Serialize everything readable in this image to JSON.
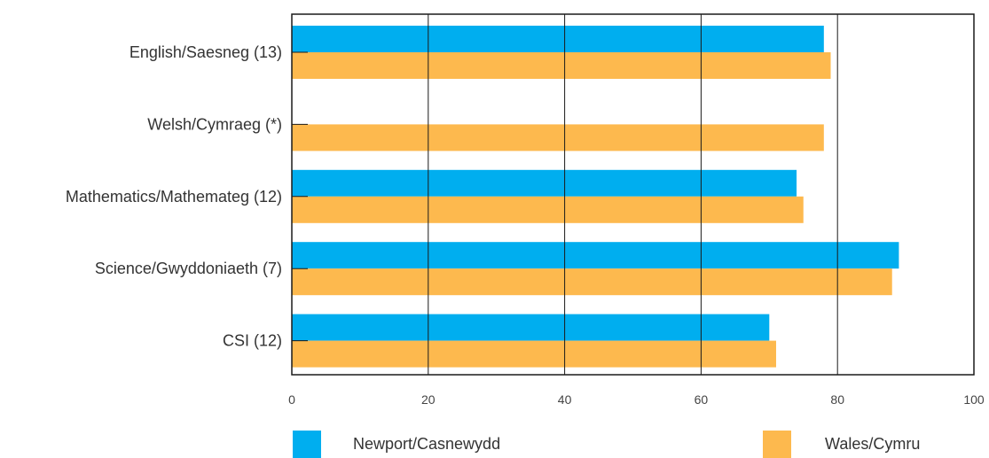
{
  "chart_data": {
    "type": "bar",
    "orientation": "horizontal",
    "categories": [
      "English/Saesneg (13)",
      "Welsh/Cymraeg (*)",
      "Mathematics/Mathemateg (12)",
      "Science/Gwyddoniaeth (7)",
      "CSI (12)"
    ],
    "series": [
      {
        "name": "Newport/Casnewydd",
        "color": "#00aeef",
        "values": [
          78,
          null,
          74,
          89,
          70
        ]
      },
      {
        "name": "Wales/Cymru",
        "color": "#fdb94e",
        "values": [
          79,
          78,
          75,
          88,
          71
        ]
      }
    ],
    "xlim": [
      0,
      100
    ],
    "xticks": [
      0,
      20,
      40,
      60,
      80,
      100
    ],
    "grid": true,
    "legend": "bottom"
  }
}
